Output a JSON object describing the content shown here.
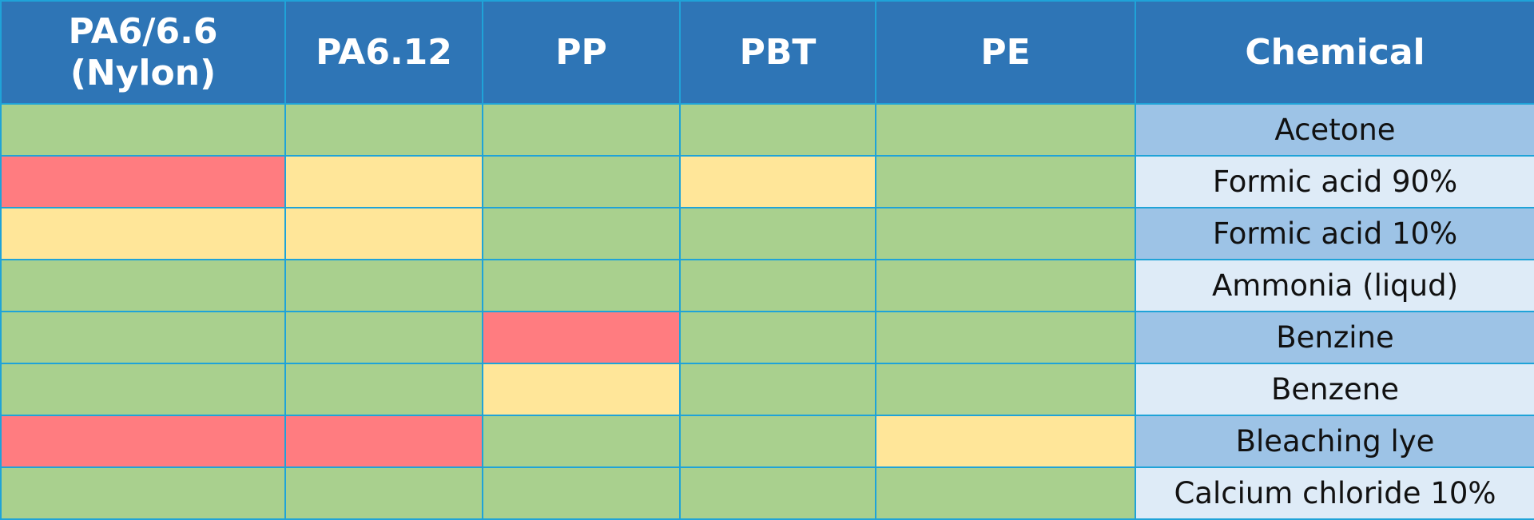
{
  "table": {
    "header": [
      "PA6/6.6 (Nylon)",
      "PA6.12",
      "PP",
      "PBT",
      "PE",
      "Chemical"
    ],
    "rows": [
      {
        "chemical": "Acetone",
        "chemical_color": "#9dc3e6",
        "cells": [
          "#a9d08e",
          "#a9d08e",
          "#a9d08e",
          "#a9d08e",
          "#a9d08e"
        ]
      },
      {
        "chemical": "Formic acid 90%",
        "chemical_color": "#deebf7",
        "cells": [
          "#ff7c80",
          "#ffe699",
          "#a9d08e",
          "#ffe699",
          "#a9d08e"
        ]
      },
      {
        "chemical": "Formic acid 10%",
        "chemical_color": "#9dc3e6",
        "cells": [
          "#ffe699",
          "#ffe699",
          "#a9d08e",
          "#a9d08e",
          "#a9d08e"
        ]
      },
      {
        "chemical": "Ammonia (liqud)",
        "chemical_color": "#deebf7",
        "cells": [
          "#a9d08e",
          "#a9d08e",
          "#a9d08e",
          "#a9d08e",
          "#a9d08e"
        ]
      },
      {
        "chemical": "Benzine",
        "chemical_color": "#9dc3e6",
        "cells": [
          "#a9d08e",
          "#a9d08e",
          "#ff7c80",
          "#a9d08e",
          "#a9d08e"
        ]
      },
      {
        "chemical": "Benzene",
        "chemical_color": "#deebf7",
        "cells": [
          "#a9d08e",
          "#a9d08e",
          "#ffe699",
          "#a9d08e",
          "#a9d08e"
        ]
      },
      {
        "chemical": "Bleaching lye",
        "chemical_color": "#9dc3e6",
        "cells": [
          "#ff7c80",
          "#ff7c80",
          "#a9d08e",
          "#a9d08e",
          "#ffe699"
        ]
      },
      {
        "chemical": "Calcium chloride 10%",
        "chemical_color": "#deebf7",
        "cells": [
          "#a9d08e",
          "#a9d08e",
          "#a9d08e",
          "#a9d08e",
          "#a9d08e"
        ]
      }
    ]
  }
}
